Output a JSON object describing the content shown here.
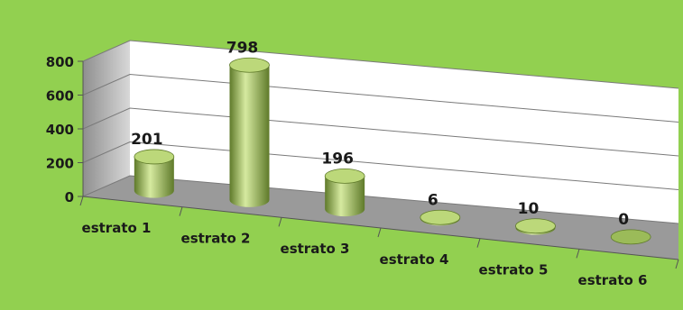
{
  "chart_data": {
    "type": "bar",
    "style": "3d-cylinder",
    "categories": [
      "estrato 1",
      "estrato 2",
      "estrato 3",
      "estrato 4",
      "estrato 5",
      "estrato 6"
    ],
    "values": [
      201,
      798,
      196,
      6,
      10,
      0
    ],
    "data_labels": [
      "201",
      "798",
      "196",
      "6",
      "10",
      "0"
    ],
    "y_ticks": [
      "0",
      "200",
      "400",
      "600",
      "800"
    ],
    "ylim": [
      0,
      800
    ],
    "grid": true,
    "legend": "none",
    "title": "",
    "xlabel": "",
    "ylabel": "",
    "colors": {
      "background": "#92d050",
      "bar_light": "#d6eaa0",
      "bar_mid": "#9bbb59",
      "bar_dark": "#5f7a2a",
      "bar_top": "#bcd87a",
      "wall": "#ffffff",
      "floor": "#9a9a9a",
      "side_wall": "#c4c4c4"
    }
  }
}
